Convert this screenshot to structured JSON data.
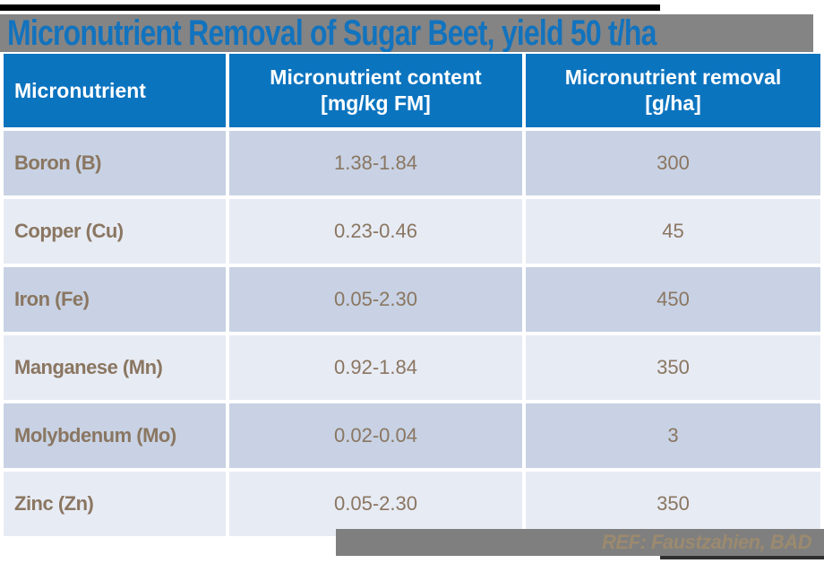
{
  "slide": {
    "title": "Micronutrient Removal of Sugar Beet, yield 50 t/ha",
    "footer_ref": "REF: Faustzahien, BAD"
  },
  "table": {
    "headers": {
      "col1": "Micronutrient",
      "col2": "Micronutrient content\n[mg/kg FM]",
      "col3": "Micronutrient removal\n[g/ha]"
    },
    "rows": [
      {
        "name": "Boron (B)",
        "content": "1.38-1.84",
        "removal": "300"
      },
      {
        "name": "Copper (Cu)",
        "content": "0.23-0.46",
        "removal": "45"
      },
      {
        "name": "Iron (Fe)",
        "content": "0.05-2.30",
        "removal": "450"
      },
      {
        "name": "Manganese (Mn)",
        "content": "0.92-1.84",
        "removal": "350"
      },
      {
        "name": "Molybdenum (Mo)",
        "content": "0.02-0.04",
        "removal": "3"
      },
      {
        "name": "Zinc (Zn)",
        "content": "0.05-2.30",
        "removal": "350"
      }
    ]
  },
  "colors": {
    "title_text": "#1273be",
    "title_band": "#848484",
    "header_bg": "#0b74bf",
    "header_text": "#ffffff",
    "row_dark": "#c8d2e4",
    "row_light": "#e7ebf4",
    "body_text": "#8a7661",
    "footer_bar": "#7f7f7f",
    "footer_text": "#9c8a6e",
    "accent_bar": "#000000"
  }
}
